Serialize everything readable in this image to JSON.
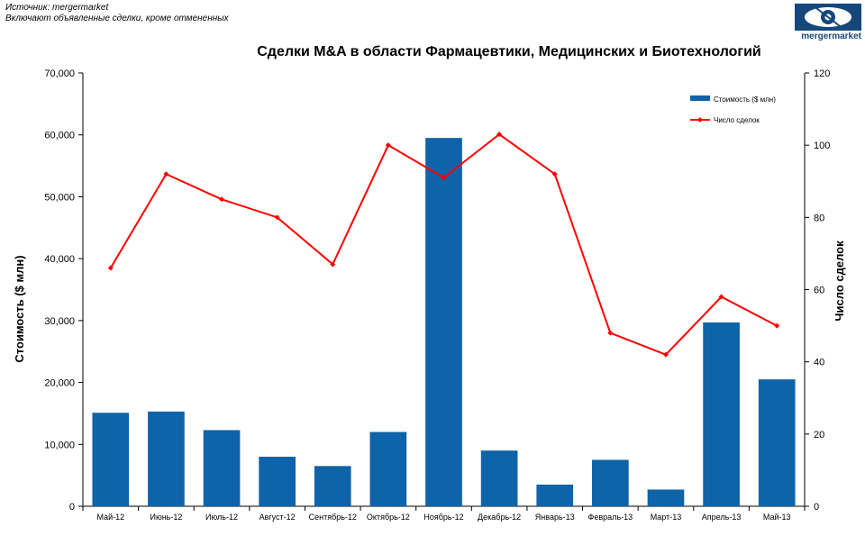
{
  "source_lines": {
    "line1": "Источник: mergermarket",
    "line2": "Включают объявленные сделки, кроме отмененных"
  },
  "logo": {
    "text": "mergermarket",
    "icon": "eye-logo-icon",
    "color": "#16477a"
  },
  "colors": {
    "bar": "#0f63a8",
    "line": "#ff0000",
    "axis": "#000000"
  },
  "chart_data": {
    "type": "bar",
    "title": "Сделки M&A в области Фармацевтики, Медицинских и Биотехнологий",
    "categories": [
      "Май-12",
      "Июнь-12",
      "Июль-12",
      "Август-12",
      "Сентябрь-12",
      "Октябрь-12",
      "Ноябрь-12",
      "Декабрь-12",
      "Январь-13",
      "Февраль-13",
      "Март-13",
      "Апрель-13",
      "Май-13"
    ],
    "ylabel": "Стоимость  ($ млн)",
    "y2label": "Число сделок",
    "ylim": [
      0,
      70000
    ],
    "y2lim": [
      0,
      120
    ],
    "yticks": [
      "0",
      "10,000",
      "20,000",
      "30,000",
      "40,000",
      "50,000",
      "60,000",
      "70,000"
    ],
    "y2ticks": [
      "0",
      "20",
      "40",
      "60",
      "80",
      "100",
      "120"
    ],
    "legend_position": "top-right",
    "series": [
      {
        "name": "Стоимость ($ млн)",
        "type": "bar",
        "axis": "left",
        "values": [
          15100,
          15300,
          12300,
          8000,
          6500,
          12000,
          59500,
          9000,
          3500,
          7500,
          2700,
          29700,
          20500
        ]
      },
      {
        "name": "Число сделок",
        "type": "line",
        "axis": "right",
        "values": [
          66,
          92,
          85,
          80,
          67,
          100,
          91,
          103,
          92,
          48,
          42,
          58,
          50
        ]
      }
    ]
  }
}
